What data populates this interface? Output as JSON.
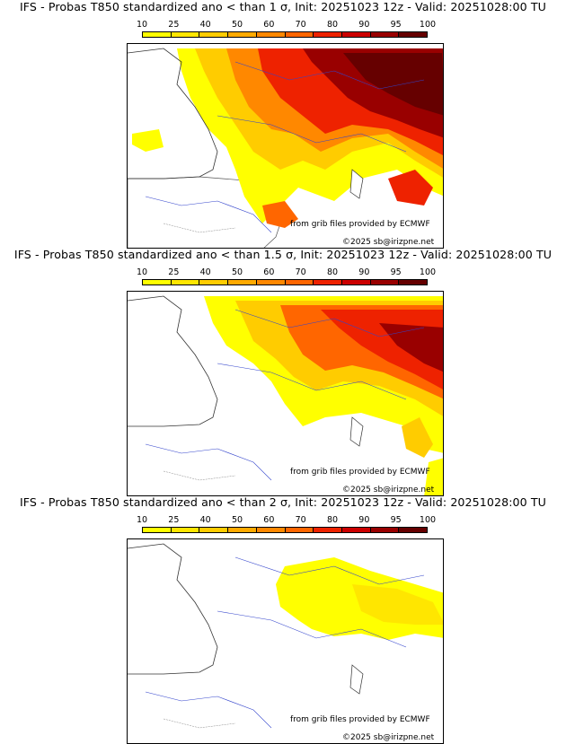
{
  "legend": {
    "ticks": [
      "10",
      "25",
      "40",
      "50",
      "60",
      "70",
      "80",
      "90",
      "95",
      "100"
    ],
    "colors": [
      "#ffff00",
      "#ffe600",
      "#ffcc00",
      "#ffaa00",
      "#ff8800",
      "#ff6600",
      "#ee2200",
      "#cc0000",
      "#990000",
      "#660000"
    ]
  },
  "panels": [
    {
      "title": "IFS - Probas T850  standardized ano < than 1 σ, Init: 20251023 12z - Valid: 20251028:00 TU",
      "credit_source": "from grib files provided by ECMWF",
      "credit_copyright": "©2025 sb@irizpne.net"
    },
    {
      "title": "IFS - Probas T850  standardized ano < than 1.5 σ, Init: 20251023 12z - Valid: 20251028:00 TU",
      "credit_source": "from grib files provided by ECMWF",
      "credit_copyright": "©2025 sb@irizpne.net"
    },
    {
      "title": "IFS - Probas T850  standardized ano < than 2 σ, Init: 20251023 12z - Valid: 20251028:00 TU",
      "credit_source": "from grib files provided by ECMWF",
      "credit_copyright": "©2025 sb@irizpne.net"
    }
  ]
}
